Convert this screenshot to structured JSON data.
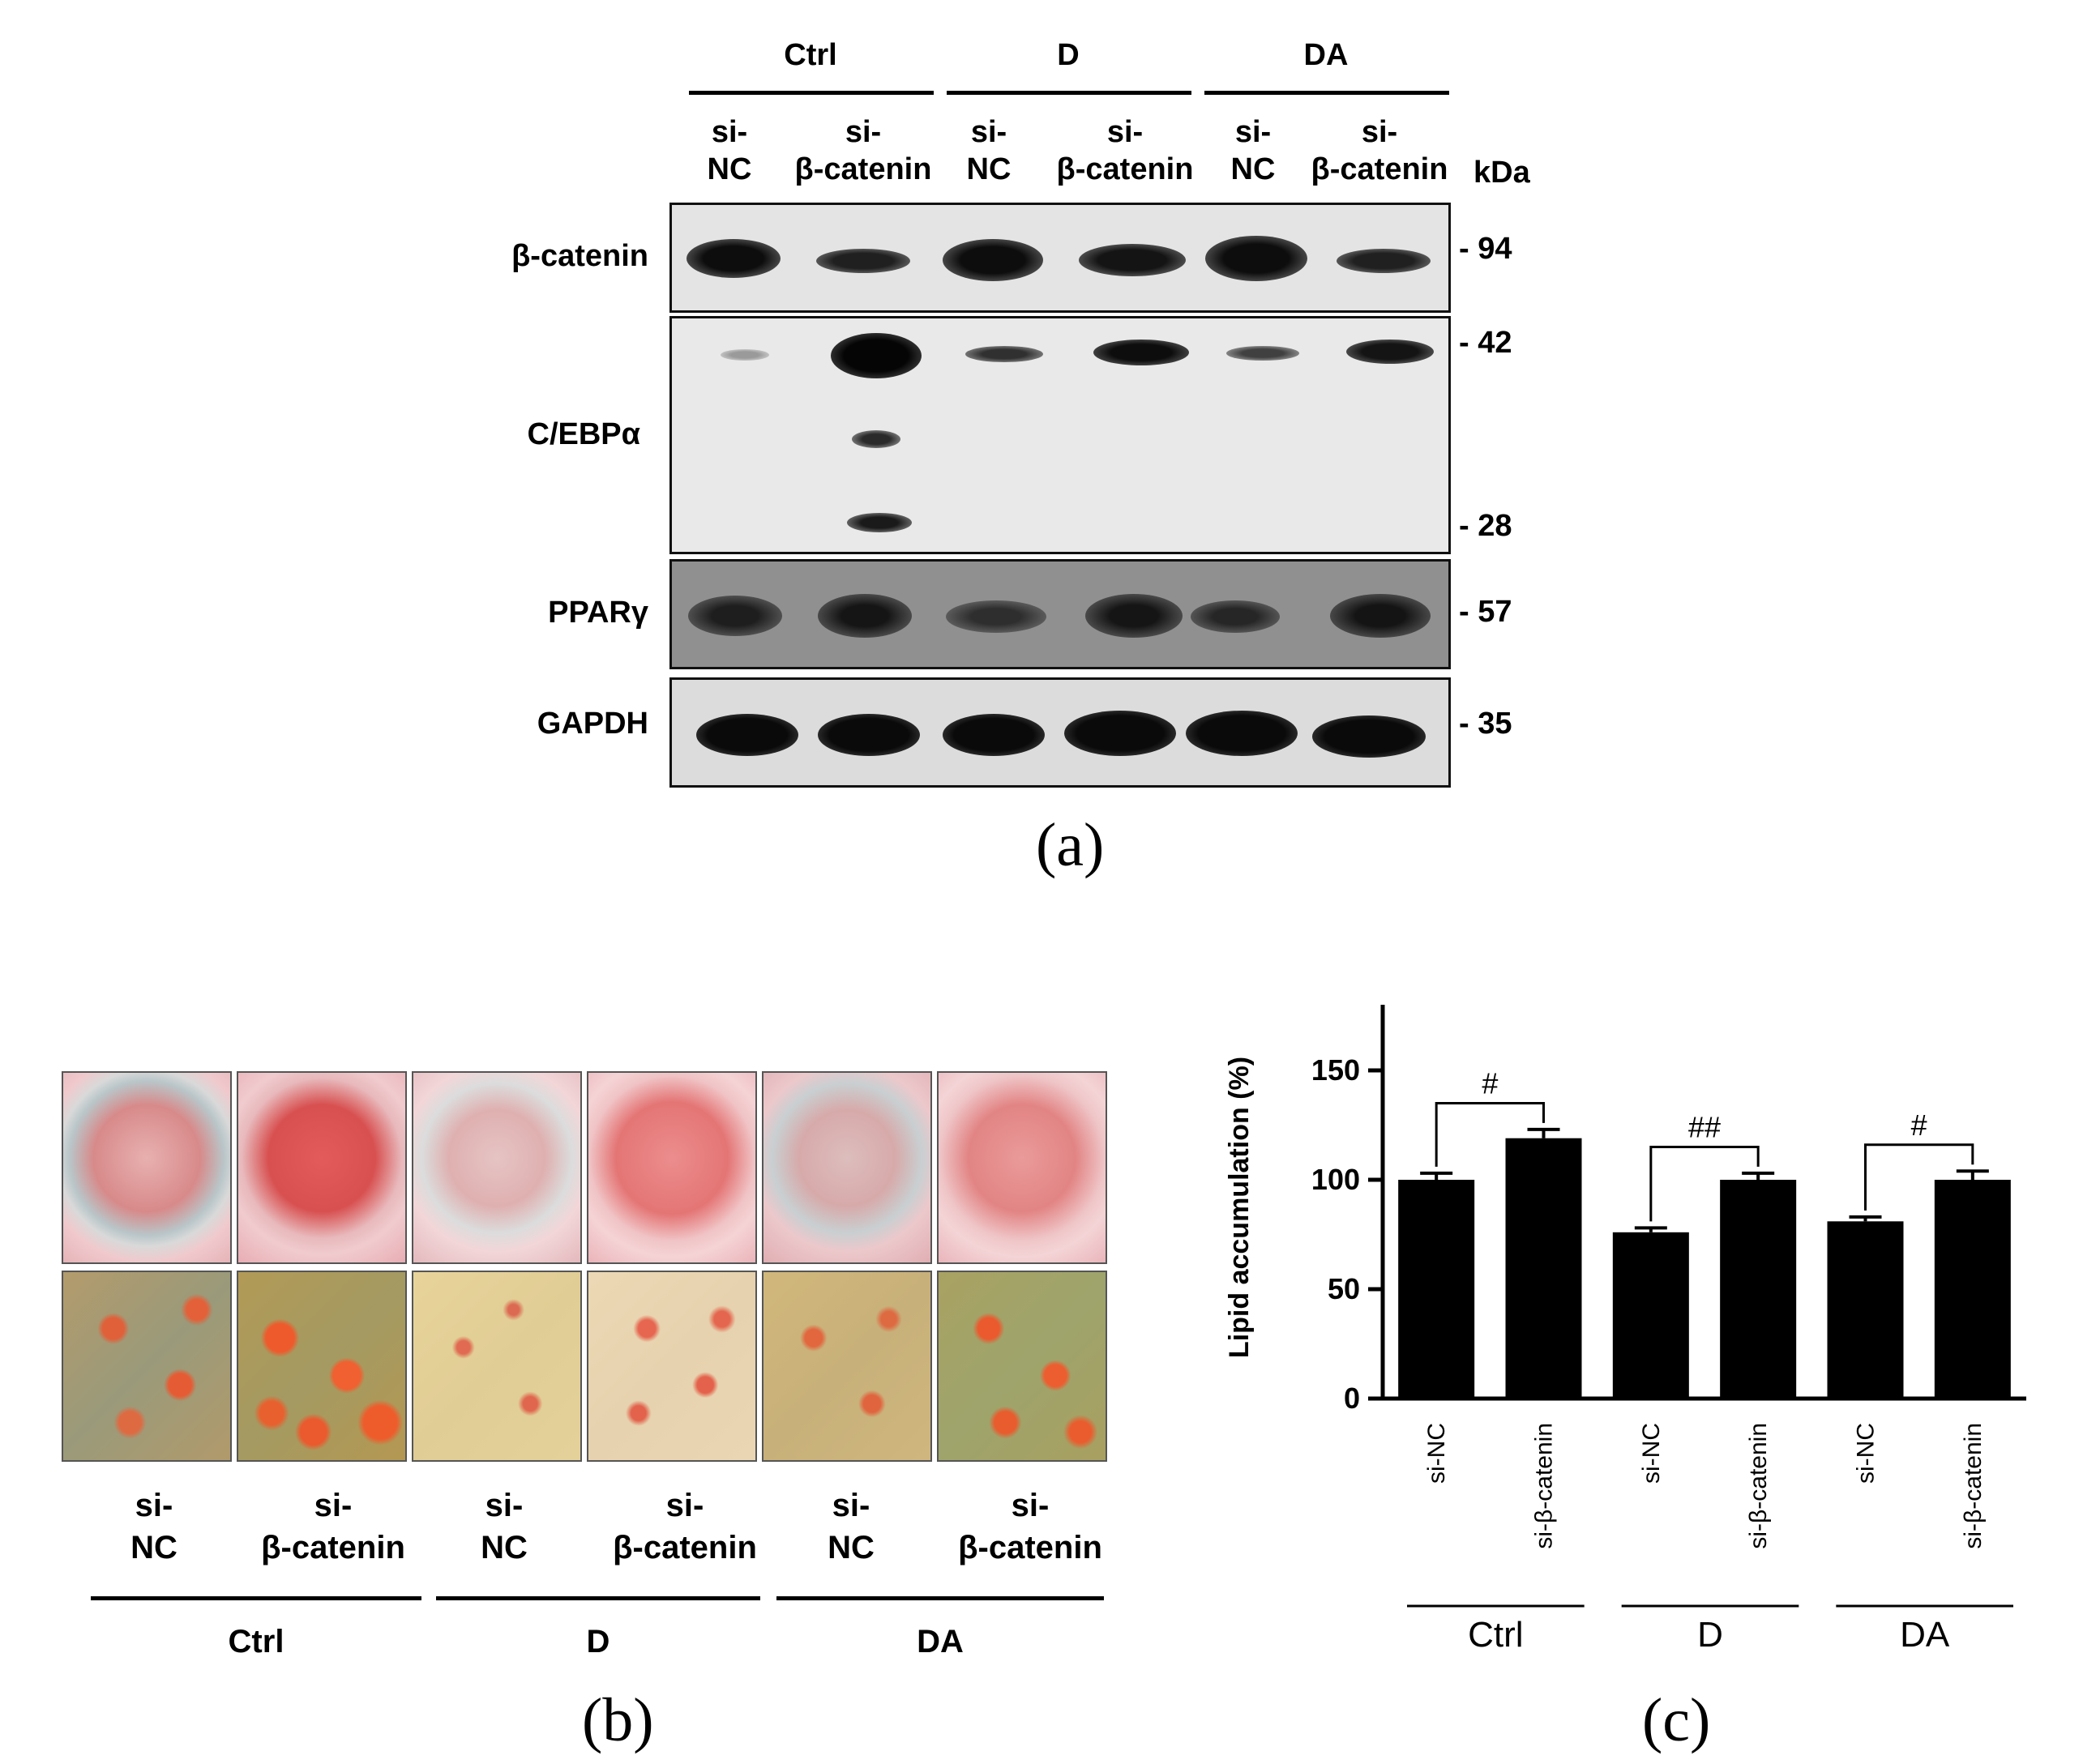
{
  "panel_a": {
    "groups": [
      "Ctrl",
      "D",
      "DA"
    ],
    "lanes": [
      {
        "line1": "si-",
        "line2": "NC"
      },
      {
        "line1": "si-",
        "line2": "β-catenin"
      },
      {
        "line1": "si-",
        "line2": "NC"
      },
      {
        "line1": "si-",
        "line2": "β-catenin"
      },
      {
        "line1": "si-",
        "line2": "NC"
      },
      {
        "line1": "si-",
        "line2": "β-catenin"
      }
    ],
    "kda_header": "kDa",
    "blots": [
      {
        "label": "β-catenin",
        "markers": [
          "- 94"
        ]
      },
      {
        "label": "C/EBPα",
        "markers": [
          "- 42",
          "- 28"
        ]
      },
      {
        "label": "PPARγ",
        "markers": [
          "- 57"
        ]
      },
      {
        "label": "GAPDH",
        "markers": [
          "- 35"
        ]
      }
    ],
    "caption": "(a)"
  },
  "panel_b": {
    "lanes": [
      {
        "line1": "si-",
        "line2": "NC"
      },
      {
        "line1": "si-",
        "line2": "β-catenin"
      },
      {
        "line1": "si-",
        "line2": "NC"
      },
      {
        "line1": "si-",
        "line2": "β-catenin"
      },
      {
        "line1": "si-",
        "line2": "NC"
      },
      {
        "line1": "si-",
        "line2": "β-catenin"
      }
    ],
    "groups": [
      "Ctrl",
      "D",
      "DA"
    ],
    "caption": "(b)"
  },
  "panel_c": {
    "caption": "(c)",
    "chart_data": {
      "type": "bar",
      "title": "",
      "ylabel": "Lipid accumulation (%)",
      "xlabel": "",
      "ylim": [
        0,
        180
      ],
      "yticks": [
        0,
        50,
        100,
        150
      ],
      "categories": [
        "si-NC",
        "si-β-catenin",
        "si-NC",
        "si-β-catenin",
        "si-NC",
        "si-β-catenin"
      ],
      "groups": [
        "Ctrl",
        "D",
        "DA"
      ],
      "values": [
        100,
        119,
        76,
        100,
        81,
        100
      ],
      "errors": [
        3,
        4,
        2,
        3,
        2,
        4
      ],
      "significance": [
        "#",
        "##",
        "#"
      ],
      "color": "#000000"
    }
  }
}
